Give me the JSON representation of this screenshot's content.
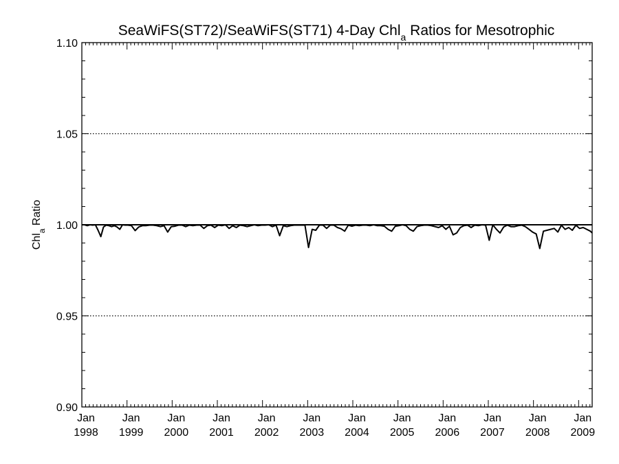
{
  "chart_data": {
    "type": "line",
    "title": {
      "main": "SeaWiFS(ST72)/SeaWiFS(ST71) 4-Day Chl",
      "subscript": "a",
      "rest": " Ratios for Mesotrophic"
    },
    "ylabel": {
      "main": "Chl",
      "subscript": "a",
      "rest": " Ratio"
    },
    "xlabel": "",
    "ylim": [
      0.9,
      1.1
    ],
    "xlim": [
      1998.0,
      2009.3
    ],
    "y_ticks": [
      {
        "value": 0.9,
        "label": "0.90"
      },
      {
        "value": 0.95,
        "label": "0.95"
      },
      {
        "value": 1.0,
        "label": "1.00"
      },
      {
        "value": 1.05,
        "label": "1.05"
      },
      {
        "value": 1.1,
        "label": "1.10"
      }
    ],
    "dotted_gridlines": [
      0.95,
      1.05
    ],
    "reference_line": 1.0,
    "x_ticks": [
      {
        "value": 1998,
        "month": "Jan",
        "year": "1998"
      },
      {
        "value": 1999,
        "month": "Jan",
        "year": "1999"
      },
      {
        "value": 2000,
        "month": "Jan",
        "year": "2000"
      },
      {
        "value": 2001,
        "month": "Jan",
        "year": "2001"
      },
      {
        "value": 2002,
        "month": "Jan",
        "year": "2002"
      },
      {
        "value": 2003,
        "month": "Jan",
        "year": "2003"
      },
      {
        "value": 2004,
        "month": "Jan",
        "year": "2004"
      },
      {
        "value": 2005,
        "month": "Jan",
        "year": "2005"
      },
      {
        "value": 2006,
        "month": "Jan",
        "year": "2006"
      },
      {
        "value": 2007,
        "month": "Jan",
        "year": "2007"
      },
      {
        "value": 2008,
        "month": "Jan",
        "year": "2008"
      },
      {
        "value": 2009,
        "month": "Jan",
        "year": "2009"
      }
    ],
    "series": [
      {
        "x": [
          1998.0,
          1998.06,
          1998.12,
          1998.18,
          1998.24,
          1998.3,
          1998.36,
          1998.42,
          1998.48,
          1998.54,
          1998.6,
          1998.66,
          1998.72,
          1998.78,
          1998.84,
          1998.9,
          1998.96,
          1999.02,
          1999.1,
          1999.18,
          1999.26,
          1999.34,
          1999.42,
          1999.5,
          1999.58,
          1999.66,
          1999.74,
          1999.82,
          1999.9,
          1999.98,
          2000.06,
          2000.14,
          2000.22,
          2000.3,
          2000.38,
          2000.46,
          2000.54,
          2000.62,
          2000.7,
          2000.78,
          2000.86,
          2000.94,
          2001.02,
          2001.1,
          2001.18,
          2001.26,
          2001.34,
          2001.42,
          2001.5,
          2001.58,
          2001.66,
          2001.74,
          2001.82,
          2001.9,
          2001.98,
          2002.06,
          2002.14,
          2002.22,
          2002.3,
          2002.38,
          2002.46,
          2002.54,
          2002.62,
          2002.7,
          2002.78,
          2002.86,
          2002.94,
          2003.02,
          2003.1,
          2003.18,
          2003.26,
          2003.34,
          2003.42,
          2003.5,
          2003.58,
          2003.66,
          2003.74,
          2003.82,
          2003.9,
          2003.98,
          2004.06,
          2004.14,
          2004.22,
          2004.3,
          2004.38,
          2004.46,
          2004.54,
          2004.62,
          2004.7,
          2004.78,
          2004.86,
          2004.94,
          2005.02,
          2005.1,
          2005.18,
          2005.26,
          2005.34,
          2005.42,
          2005.5,
          2005.58,
          2005.66,
          2005.74,
          2005.82,
          2005.9,
          2005.98,
          2006.06,
          2006.14,
          2006.22,
          2006.3,
          2006.38,
          2006.46,
          2006.54,
          2006.62,
          2006.7,
          2006.78,
          2006.86,
          2006.94,
          2007.02,
          2007.1,
          2007.18,
          2007.26,
          2007.34,
          2007.42,
          2007.5,
          2007.58,
          2007.66,
          2007.74,
          2007.82,
          2007.9,
          2007.98,
          2008.06,
          2008.14,
          2008.22,
          2008.3,
          2008.38,
          2008.46,
          2008.54,
          2008.62,
          2008.7,
          2008.78,
          2008.86,
          2008.94,
          2009.02,
          2009.1,
          2009.18,
          2009.26,
          2009.3
        ],
        "y": [
          1.0,
          1.0,
          0.9995,
          1.0,
          0.9998,
          1.0,
          0.997,
          0.9935,
          0.9988,
          0.9998,
          0.9995,
          0.999,
          0.9995,
          0.9988,
          0.9975,
          1.0,
          0.9998,
          0.9998,
          0.9995,
          0.9968,
          0.9988,
          0.9995,
          0.9995,
          0.9998,
          0.9998,
          0.9995,
          0.999,
          0.9995,
          0.996,
          0.999,
          0.9992,
          0.9998,
          0.9998,
          0.999,
          0.9998,
          0.9995,
          0.9998,
          0.9998,
          0.998,
          0.9995,
          0.9998,
          0.9985,
          0.9998,
          0.9995,
          1.0,
          0.998,
          0.9995,
          0.9985,
          0.9998,
          0.9995,
          0.999,
          0.9995,
          1.0,
          0.9995,
          0.9998,
          0.9998,
          1.0,
          0.999,
          0.9998,
          0.994,
          0.9995,
          0.999,
          0.9995,
          0.9998,
          0.9998,
          0.9998,
          0.9998,
          0.9875,
          0.9975,
          0.997,
          0.9998,
          0.9998,
          0.998,
          0.9998,
          0.9998,
          0.9985,
          0.9978,
          0.9965,
          0.9998,
          0.9992,
          0.9998,
          0.9995,
          0.9998,
          0.9998,
          0.9995,
          1.0,
          0.9995,
          0.9995,
          0.9992,
          0.9975,
          0.9965,
          0.9992,
          0.9995,
          1.0,
          0.9995,
          0.9975,
          0.9965,
          0.999,
          0.9995,
          0.9998,
          0.9998,
          0.9995,
          0.999,
          0.9985,
          0.9995,
          0.9975,
          0.9992,
          0.9945,
          0.9955,
          0.9985,
          0.9995,
          0.9998,
          0.9985,
          0.9998,
          0.9995,
          1.0,
          0.9998,
          0.9915,
          1.0,
          0.9975,
          0.9955,
          0.9988,
          0.9998,
          0.999,
          0.999,
          0.9995,
          0.9998,
          0.999,
          0.9975,
          0.996,
          0.995,
          0.987,
          0.9965,
          0.997,
          0.9975,
          0.998,
          0.996,
          0.9998,
          0.9975,
          0.9985,
          0.997,
          0.9998,
          0.998,
          0.9985,
          0.9975,
          0.9965,
          0.9955
        ]
      }
    ],
    "grid": false,
    "line_color": "#000000",
    "background_color": "#ffffff"
  }
}
